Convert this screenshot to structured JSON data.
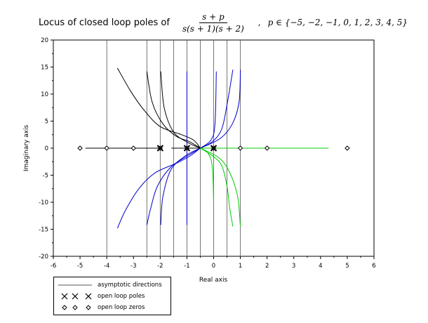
{
  "title": {
    "prefix": "Locus of closed loop poles of",
    "numerator": "s + p",
    "denominator": "s(s + 1)(s + 2)",
    "separator": ",",
    "param": "p ∈ {−5, −2, −1, 0, 1, 2, 3, 4, 5}"
  },
  "chart_data": {
    "type": "scatter",
    "title": "Locus of closed loop poles of (s + p) / (s(s + 1)(s + 2)),  p ∈ {−5, −2, −1, 0, 1, 2, 3, 4, 5}",
    "xlabel": "Real axis",
    "ylabel": "Imaginary axis",
    "xlim": [
      -6,
      6
    ],
    "ylim": [
      -20,
      20
    ],
    "x_ticks": [
      -6,
      -5,
      -4,
      -3,
      -2,
      -1,
      0,
      1,
      2,
      3,
      4,
      5,
      6
    ],
    "y_ticks": [
      -20,
      -15,
      -10,
      -5,
      0,
      5,
      10,
      15,
      20
    ],
    "x_tick_labels": [
      "-6",
      "-5",
      "-4",
      "-3",
      "-2",
      "-1",
      "0",
      "1",
      "2",
      "3",
      "4",
      "5",
      "6"
    ],
    "y_tick_labels": [
      "-20",
      "-15",
      "-10",
      "-5",
      "0",
      "5",
      "10",
      "15",
      "20"
    ],
    "grid": false,
    "legend_position": "bottom-left, below axes",
    "open_loop_poles": [
      [
        -2,
        0
      ],
      [
        -1,
        0
      ],
      [
        0,
        0
      ]
    ],
    "open_loop_zeros": [
      [
        -5,
        0
      ],
      [
        -4,
        0
      ],
      [
        -3,
        0
      ],
      [
        -2,
        0
      ],
      [
        -1,
        0
      ],
      [
        0,
        0
      ],
      [
        1,
        0
      ],
      [
        2,
        0
      ],
      [
        5,
        0
      ]
    ],
    "asymptotes_real": [
      -4,
      -2.5,
      -2,
      -1.5,
      -1,
      -0.5,
      0,
      0.5,
      1
    ],
    "colors": {
      "black": "#000000",
      "blue": "#0000cc",
      "green": "#00cc00",
      "asymptote": "#555555"
    },
    "branches": [
      {
        "color": "black",
        "points": [
          [
            -2.05,
            0
          ],
          [
            -2.4,
            0
          ],
          [
            -2.9,
            0
          ],
          [
            -3.5,
            0
          ],
          [
            -4.0,
            0
          ],
          [
            -4.8,
            0
          ]
        ]
      },
      {
        "color": "black",
        "points": [
          [
            -0.42,
            0
          ],
          [
            -1.0,
            0
          ],
          [
            -1.58,
            0
          ]
        ]
      },
      {
        "color": "black",
        "points": [
          [
            -0.5,
            0
          ],
          [
            -0.75,
            1.5
          ],
          [
            -1.2,
            2.5
          ],
          [
            -2.0,
            4.0
          ],
          [
            -2.6,
            7.0
          ],
          [
            -3.1,
            10.5
          ],
          [
            -3.6,
            14.8
          ]
        ]
      },
      {
        "color": "black",
        "points": [
          [
            -0.5,
            0
          ],
          [
            -0.9,
            1.2
          ],
          [
            -1.4,
            2.2
          ],
          [
            -1.9,
            4.5
          ],
          [
            -2.3,
            8.5
          ],
          [
            -2.5,
            14.2
          ]
        ]
      },
      {
        "color": "black",
        "points": [
          [
            -0.5,
            0
          ],
          [
            -0.95,
            1.0
          ],
          [
            -1.5,
            3.0
          ],
          [
            -1.85,
            7.5
          ],
          [
            -1.98,
            14.2
          ]
        ]
      },
      {
        "color": "blue",
        "points": [
          [
            -0.5,
            0
          ],
          [
            -0.9,
            -1.5
          ],
          [
            -1.4,
            -2.8
          ],
          [
            -2.2,
            -4.6
          ],
          [
            -2.8,
            -7.5
          ],
          [
            -3.3,
            -11.5
          ],
          [
            -3.6,
            -14.8
          ]
        ]
      },
      {
        "color": "blue",
        "points": [
          [
            -0.5,
            0
          ],
          [
            -1.0,
            -1.5
          ],
          [
            -1.6,
            -3.5
          ],
          [
            -2.1,
            -7.0
          ],
          [
            -2.35,
            -11.0
          ],
          [
            -2.5,
            -14.2
          ]
        ]
      },
      {
        "color": "blue",
        "points": [
          [
            -0.5,
            0
          ],
          [
            -1.05,
            -1.4
          ],
          [
            -1.6,
            -4.0
          ],
          [
            -1.9,
            -9.0
          ],
          [
            -1.98,
            -14.2
          ]
        ]
      },
      {
        "color": "blue",
        "points": [
          [
            -0.5,
            0
          ],
          [
            -0.05,
            1.2
          ],
          [
            0.3,
            3.5
          ],
          [
            0.5,
            8.0
          ],
          [
            0.72,
            14.5
          ]
        ]
      },
      {
        "color": "blue",
        "points": [
          [
            -0.5,
            0
          ],
          [
            0.25,
            1.8
          ],
          [
            0.7,
            4.5
          ],
          [
            0.95,
            8.5
          ],
          [
            1.0,
            14.5
          ]
        ]
      },
      {
        "color": "blue",
        "points": [
          [
            -0.5,
            0
          ],
          [
            -0.1,
            1.5
          ],
          [
            0.05,
            4.5
          ],
          [
            0.1,
            14.2
          ]
        ]
      },
      {
        "color": "blue",
        "points": [
          [
            -1.0,
            0
          ],
          [
            -1.0,
            14.2
          ]
        ]
      },
      {
        "color": "blue",
        "points": [
          [
            -1.0,
            0
          ],
          [
            -1.0,
            -14.2
          ]
        ]
      },
      {
        "color": "green",
        "points": [
          [
            -0.5,
            0
          ],
          [
            -0.05,
            -1.4
          ],
          [
            0.3,
            -3.2
          ],
          [
            0.5,
            -7.0
          ],
          [
            0.6,
            -11.0
          ],
          [
            0.72,
            -14.5
          ]
        ]
      },
      {
        "color": "green",
        "points": [
          [
            -0.5,
            0
          ],
          [
            0.2,
            -1.8
          ],
          [
            0.6,
            -4.5
          ],
          [
            0.9,
            -9.0
          ],
          [
            1.0,
            -14.5
          ]
        ]
      },
      {
        "color": "green",
        "points": [
          [
            -0.5,
            0
          ],
          [
            -0.2,
            -1.0
          ],
          [
            -0.05,
            -3.5
          ],
          [
            0.0,
            -10.0
          ]
        ]
      },
      {
        "color": "green",
        "points": [
          [
            -0.5,
            0
          ],
          [
            0.5,
            0
          ],
          [
            1.5,
            0
          ],
          [
            2.5,
            0
          ],
          [
            3.5,
            0
          ],
          [
            4.3,
            0
          ]
        ]
      }
    ]
  },
  "legend": {
    "items": [
      {
        "label": "asymptotic directions"
      },
      {
        "label": "open loop poles"
      },
      {
        "label": "open loop zeros"
      }
    ]
  }
}
